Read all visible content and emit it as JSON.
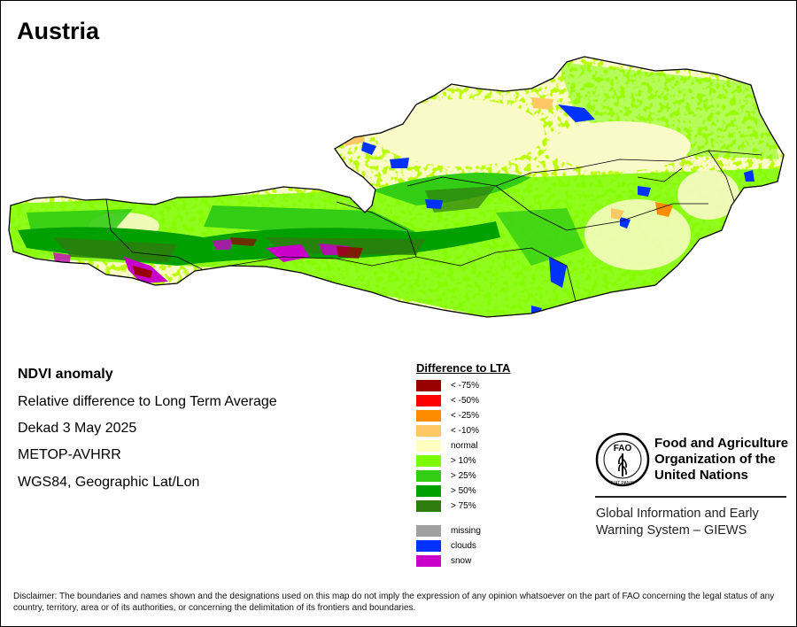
{
  "title": "Austria",
  "info": {
    "heading": "NDVI anomaly",
    "line1": "Relative difference to Long Term Average",
    "line2": "Dekad 3 May 2025",
    "line3": "METOP-AVHRR",
    "line4": "WGS84, Geographic Lat/Lon"
  },
  "legend": {
    "title": "Difference to LTA",
    "items": [
      {
        "label": "< -75%",
        "color": "#990000"
      },
      {
        "label": "< -50%",
        "color": "#ff0000"
      },
      {
        "label": "< -25%",
        "color": "#ff8c00"
      },
      {
        "label": "< -10%",
        "color": "#ffc864"
      },
      {
        "label": "normal",
        "color": "#ffffc0"
      },
      {
        "label": "> 10%",
        "color": "#7cfc00"
      },
      {
        "label": "> 25%",
        "color": "#32cd14"
      },
      {
        "label": "> 50%",
        "color": "#00a000"
      },
      {
        "label": "> 75%",
        "color": "#2e7d0e"
      },
      {
        "label": "missing",
        "color": "#a0a0a0"
      },
      {
        "label": "clouds",
        "color": "#0032ff"
      },
      {
        "label": "snow",
        "color": "#c800c8"
      }
    ]
  },
  "map_colors": {
    "normal": "#fafac8",
    "green_light": "#7cfc00",
    "green_mid": "#32cd14",
    "green_dark": "#00a000",
    "green_deep": "#2e7d0e",
    "clouds": "#0032ff",
    "snow": "#c800c8",
    "deficit": "#ff8c00",
    "deficit_light": "#ffc864",
    "deficit_strong": "#990000"
  },
  "org": {
    "name_line1": "Food and Agriculture",
    "name_line2": "Organization of the",
    "name_line3": "United Nations",
    "system_line1": "Global Information and Early",
    "system_line2": "Warning System – GIEWS",
    "logo_text": "FAO",
    "motto": "FIAT PANIS"
  },
  "disclaimer": "Disclaimer: The boundaries and names shown and the designations used on this map do not imply the expression of any opinion whatsoever on the part of FAO concerning the legal status of any country, territory, area or of its authorities, or concerning the delimitation of its frontiers and boundaries."
}
